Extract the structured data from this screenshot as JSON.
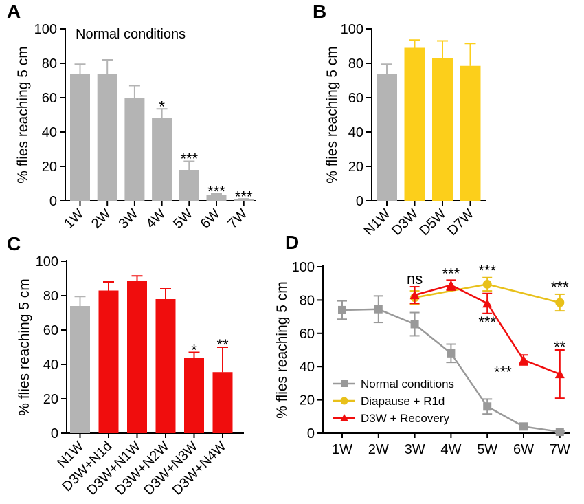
{
  "chart_data": [
    {
      "panel": "A",
      "type": "bar",
      "ylabel": "% flies reaching 5 cm",
      "ylim": [
        0,
        100
      ],
      "yticks": [
        0,
        20,
        40,
        60,
        80,
        100
      ],
      "annotation": "Normal conditions",
      "categories": [
        "1W",
        "2W",
        "3W",
        "4W",
        "5W",
        "6W",
        "7W"
      ],
      "values": [
        74,
        74,
        60,
        48,
        18,
        3.5,
        0.8
      ],
      "errors": [
        5.5,
        8,
        7,
        5.5,
        5,
        0.5,
        0.3
      ],
      "colors": [
        "#b4b4b4",
        "#b4b4b4",
        "#b4b4b4",
        "#b4b4b4",
        "#b4b4b4",
        "#b4b4b4",
        "#b4b4b4"
      ],
      "significance": [
        "",
        "",
        "",
        "*",
        "***",
        "***",
        "***"
      ]
    },
    {
      "panel": "B",
      "type": "bar",
      "ylabel": "% flies reaching 5 cm",
      "ylim": [
        0,
        100
      ],
      "yticks": [
        0,
        20,
        40,
        60,
        80,
        100
      ],
      "categories": [
        "N1W",
        "D3W",
        "D5W",
        "D7W"
      ],
      "values": [
        74,
        89,
        83,
        78.5
      ],
      "errors": [
        5.5,
        4.5,
        10,
        13
      ],
      "colors": [
        "#b4b4b4",
        "#fccf1b",
        "#fccf1b",
        "#fccf1b"
      ],
      "significance": [
        "",
        "",
        "",
        ""
      ]
    },
    {
      "panel": "C",
      "type": "bar",
      "ylabel": "% flies reaching 5 cm",
      "ylim": [
        0,
        100
      ],
      "yticks": [
        0,
        20,
        40,
        60,
        80,
        100
      ],
      "categories": [
        "N1W",
        "D3W+N1d",
        "D3W+N1W",
        "D3W+N2W",
        "D3W+N3W",
        "D3W+N4W"
      ],
      "values": [
        74,
        83,
        88.5,
        78,
        44,
        35.5
      ],
      "errors": [
        5.5,
        5,
        3,
        6,
        3,
        14.5
      ],
      "colors": [
        "#b4b4b4",
        "#f00d0d",
        "#f00d0d",
        "#f00d0d",
        "#f00d0d",
        "#f00d0d"
      ],
      "significance": [
        "",
        "",
        "",
        "",
        "*",
        "**"
      ]
    },
    {
      "panel": "D",
      "type": "line",
      "ylabel": "% flies reaching 5 cm",
      "ylim": [
        0,
        100
      ],
      "yticks": [
        0,
        20,
        40,
        60,
        80,
        100
      ],
      "categories": [
        "1W",
        "2W",
        "3W",
        "4W",
        "5W",
        "6W",
        "7W"
      ],
      "series": [
        {
          "name": "Normal conditions",
          "color": "#999999",
          "marker": "square",
          "values": [
            74,
            74.5,
            65.5,
            48,
            16,
            4,
            0.8
          ],
          "errors": [
            5.5,
            8,
            7,
            5.5,
            4.5,
            0.8,
            0.5
          ]
        },
        {
          "name": "Diapause + R1d",
          "color": "#e8c01a",
          "marker": "circle",
          "values": [
            null,
            null,
            81.5,
            null,
            89.5,
            null,
            78.5
          ],
          "errors": [
            null,
            null,
            4,
            null,
            4,
            null,
            5
          ]
        },
        {
          "name": "D3W + Recovery",
          "color": "#f00d0d",
          "marker": "triangle",
          "values": [
            null,
            null,
            83,
            89,
            78,
            44,
            35.5
          ],
          "errors": [
            null,
            null,
            5,
            3,
            6,
            3,
            14.5
          ]
        }
      ],
      "annotations": [
        {
          "text": "ns",
          "x": "3W",
          "y": 93,
          "position": "above"
        },
        {
          "text": "***",
          "x": "4W",
          "y": 96,
          "position": "above"
        },
        {
          "text": "***",
          "x": "5W",
          "y": 98,
          "position": "above"
        },
        {
          "text": "***",
          "x": "7W",
          "y": 88,
          "position": "above"
        },
        {
          "text": "***",
          "x": "5W",
          "y": 67,
          "position": "below"
        },
        {
          "text": "**",
          "x": "7W",
          "y": 52,
          "position": "above"
        },
        {
          "text": "***",
          "x": "6W",
          "y": 37,
          "position": "left"
        }
      ]
    }
  ]
}
